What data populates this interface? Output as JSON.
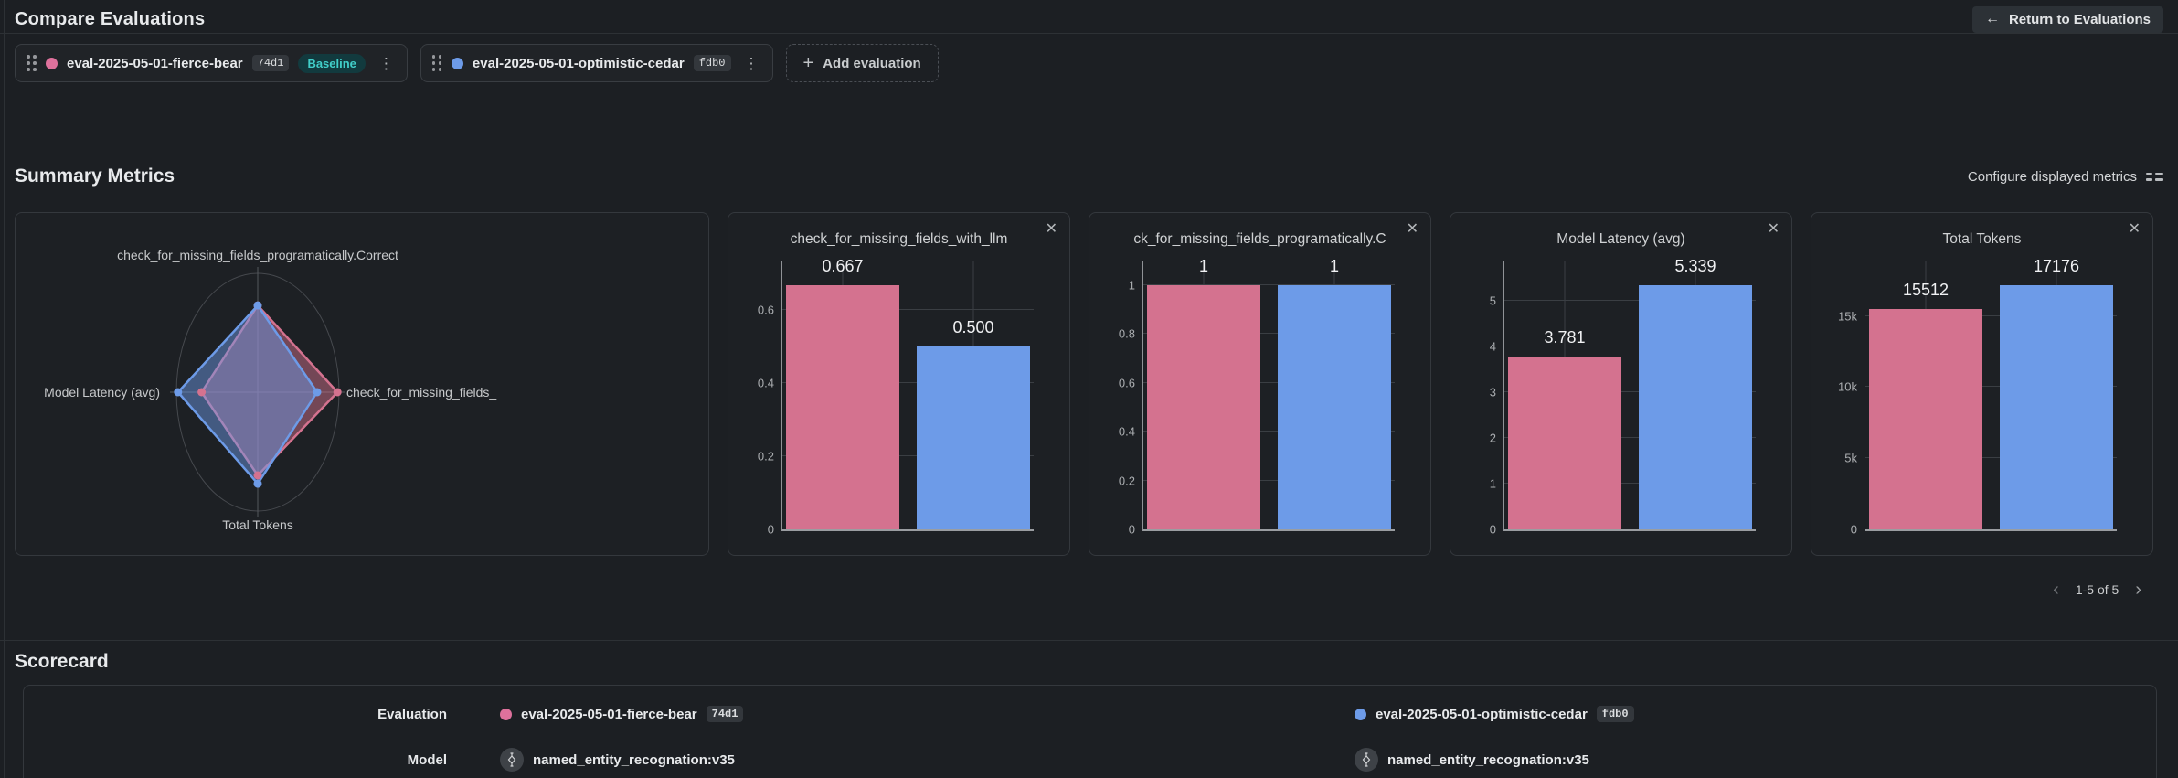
{
  "header": {
    "title": "Compare Evaluations",
    "return_label": "Return to Evaluations"
  },
  "evaluations": [
    {
      "name": "eval-2025-05-01-fierce-bear",
      "hash": "74d1",
      "color": "#de719c",
      "baseline_label": "Baseline"
    },
    {
      "name": "eval-2025-05-01-optimistic-cedar",
      "hash": "fdb0",
      "color": "#6d9be8"
    }
  ],
  "evaluation_bar": {
    "add_label": "Add evaluation"
  },
  "summary": {
    "title": "Summary Metrics",
    "configure_label": "Configure displayed metrics"
  },
  "chart_data": [
    {
      "type": "radar",
      "axes": [
        "check_for_missing_fields_programatically.Correct",
        "check_for_missing_fields_",
        "Total Tokens",
        "Model Latency (avg)"
      ],
      "series": [
        {
          "name": "eval-2025-05-01-fierce-bear",
          "color": "#d4728f",
          "values": [
            1,
            0.667,
            15512,
            3.781
          ],
          "r": [
            0.73,
            0.98,
            0.7,
            0.69
          ]
        },
        {
          "name": "eval-2025-05-01-optimistic-cedar",
          "color": "#6d9be8",
          "values": [
            1,
            0.5,
            17176,
            5.339
          ],
          "r": [
            0.73,
            0.73,
            0.77,
            0.98
          ]
        }
      ]
    },
    {
      "type": "bar",
      "title": "check_for_missing_fields_with_llm",
      "categories": [
        "eval-2025-05-01-fierce-bear",
        "eval-2025-05-01-optimistic-cedar"
      ],
      "values": [
        0.667,
        0.5
      ],
      "value_labels": [
        "0.667",
        "0.500"
      ],
      "colors": [
        "#d4728f",
        "#6d9be8"
      ],
      "ymax": 0.735,
      "yticks": [
        {
          "v": 0,
          "label": "0"
        },
        {
          "v": 0.2,
          "label": "0.2"
        },
        {
          "v": 0.4,
          "label": "0.4"
        },
        {
          "v": 0.6,
          "label": "0.6"
        }
      ]
    },
    {
      "type": "bar",
      "title": "ck_for_missing_fields_programatically.C",
      "categories": [
        "eval-2025-05-01-fierce-bear",
        "eval-2025-05-01-optimistic-cedar"
      ],
      "values": [
        1,
        1
      ],
      "value_labels": [
        "1",
        "1"
      ],
      "colors": [
        "#d4728f",
        "#6d9be8"
      ],
      "ymax": 1.1,
      "yticks": [
        {
          "v": 0,
          "label": "0"
        },
        {
          "v": 0.2,
          "label": "0.2"
        },
        {
          "v": 0.4,
          "label": "0.4"
        },
        {
          "v": 0.6,
          "label": "0.6"
        },
        {
          "v": 0.8,
          "label": "0.8"
        },
        {
          "v": 1,
          "label": "1"
        }
      ]
    },
    {
      "type": "bar",
      "title": "Model Latency (avg)",
      "categories": [
        "eval-2025-05-01-fierce-bear",
        "eval-2025-05-01-optimistic-cedar"
      ],
      "values": [
        3.781,
        5.339
      ],
      "value_labels": [
        "3.781",
        "5.339"
      ],
      "colors": [
        "#d4728f",
        "#6d9be8"
      ],
      "ymax": 5.87,
      "yticks": [
        {
          "v": 0,
          "label": "0"
        },
        {
          "v": 1,
          "label": "1"
        },
        {
          "v": 2,
          "label": "2"
        },
        {
          "v": 3,
          "label": "3"
        },
        {
          "v": 4,
          "label": "4"
        },
        {
          "v": 5,
          "label": "5"
        }
      ]
    },
    {
      "type": "bar",
      "title": "Total Tokens",
      "categories": [
        "eval-2025-05-01-fierce-bear",
        "eval-2025-05-01-optimistic-cedar"
      ],
      "values": [
        15512,
        17176
      ],
      "value_labels": [
        "15512",
        "17176"
      ],
      "colors": [
        "#d4728f",
        "#6d9be8"
      ],
      "ymax": 18900,
      "yticks": [
        {
          "v": 0,
          "label": "0"
        },
        {
          "v": 5000,
          "label": "5k"
        },
        {
          "v": 10000,
          "label": "10k"
        },
        {
          "v": 15000,
          "label": "15k"
        }
      ]
    }
  ],
  "pagination": {
    "label": "1-5 of 5"
  },
  "scorecard": {
    "title": "Scorecard",
    "row_labels": {
      "evaluation": "Evaluation",
      "model": "Model"
    },
    "model_name": "named_entity_recognation:v35"
  }
}
